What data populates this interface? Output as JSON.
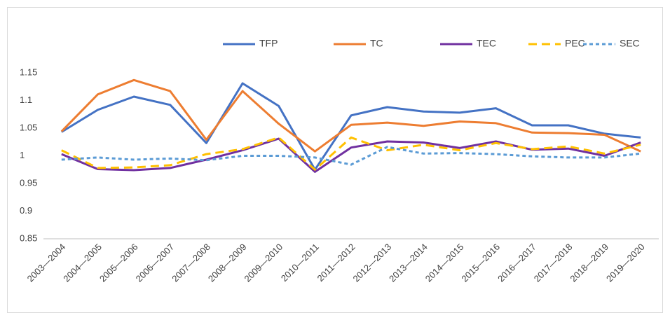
{
  "chart_data": {
    "type": "line",
    "categories": [
      "2003—2004",
      "2004—2005",
      "2005—2006",
      "2006—2007",
      "2007—2008",
      "2008—2009",
      "2009—2010",
      "2010—2011",
      "2011—2012",
      "2012—2013",
      "2013—2014",
      "2014—2015",
      "2015—2016",
      "2016—2017",
      "2017—2018",
      "2018—2019",
      "2019—2020"
    ],
    "series": [
      {
        "name": "TFP",
        "color": "#4472c4",
        "dash": "solid",
        "values": [
          1.043,
          1.083,
          1.107,
          1.092,
          1.023,
          1.131,
          1.09,
          0.975,
          1.073,
          1.088,
          1.08,
          1.078,
          1.086,
          1.055,
          1.055,
          1.04,
          1.033
        ]
      },
      {
        "name": "TC",
        "color": "#ed7d31",
        "dash": "solid",
        "values": [
          1.044,
          1.111,
          1.137,
          1.117,
          1.029,
          1.117,
          1.058,
          1.008,
          1.056,
          1.06,
          1.054,
          1.062,
          1.059,
          1.042,
          1.041,
          1.038,
          1.008
        ]
      },
      {
        "name": "TEC",
        "color": "#7030a0",
        "dash": "solid",
        "values": [
          1.003,
          0.976,
          0.974,
          0.978,
          0.993,
          1.01,
          1.031,
          0.971,
          1.015,
          1.026,
          1.024,
          1.014,
          1.026,
          1.011,
          1.013,
          1.0,
          1.024
        ]
      },
      {
        "name": "PEC",
        "color": "#ffc000",
        "dash": "dashed",
        "values": [
          1.01,
          0.978,
          0.979,
          0.983,
          1.003,
          1.012,
          1.033,
          0.975,
          1.033,
          1.01,
          1.02,
          1.01,
          1.023,
          1.012,
          1.017,
          1.004,
          1.02
        ]
      },
      {
        "name": "SEC",
        "color": "#5b9bd5",
        "dash": "dotted",
        "values": [
          0.993,
          0.997,
          0.993,
          0.995,
          0.992,
          1.0,
          1.0,
          0.997,
          0.984,
          1.016,
          1.004,
          1.005,
          1.003,
          0.999,
          0.997,
          0.997,
          1.004
        ]
      }
    ],
    "ylim": [
      0.85,
      1.15
    ],
    "yticks": [
      0.85,
      0.9,
      0.95,
      1,
      1.05,
      1.1,
      1.15
    ],
    "grid": false,
    "legend": "top"
  }
}
